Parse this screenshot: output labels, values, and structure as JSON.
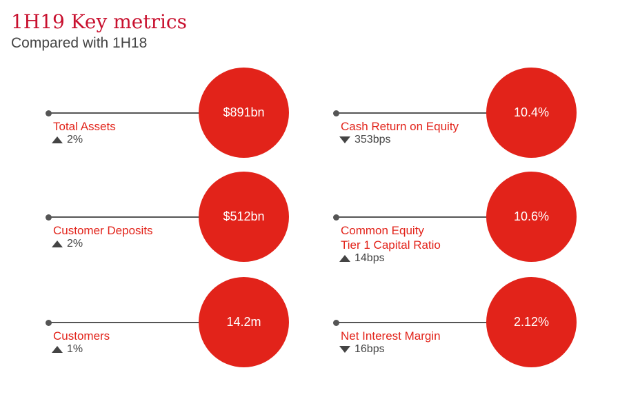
{
  "header": {
    "title": "1H19 Key metrics",
    "subtitle": "Compared with 1H18"
  },
  "colors": {
    "accent": "#e2231a",
    "title": "#c8102e",
    "line": "#555555",
    "muted": "#444444"
  },
  "metrics": [
    {
      "id": "total-assets",
      "value": "$891bn",
      "label_lines": [
        "Total Assets"
      ],
      "direction": "up",
      "change": "2%"
    },
    {
      "id": "cash-return-on-equity",
      "value": "10.4%",
      "label_lines": [
        "Cash Return on Equity"
      ],
      "direction": "down",
      "change": "353bps"
    },
    {
      "id": "customer-deposits",
      "value": "$512bn",
      "label_lines": [
        "Customer Deposits"
      ],
      "direction": "up",
      "change": "2%"
    },
    {
      "id": "cet1-capital-ratio",
      "value": "10.6%",
      "label_lines": [
        "Common Equity",
        "Tier 1 Capital Ratio"
      ],
      "direction": "up",
      "change": "14bps"
    },
    {
      "id": "customers",
      "value": "14.2m",
      "label_lines": [
        "Customers"
      ],
      "direction": "up",
      "change": "1%"
    },
    {
      "id": "net-interest-margin",
      "value": "2.12%",
      "label_lines": [
        "Net Interest Margin"
      ],
      "direction": "down",
      "change": "16bps"
    }
  ]
}
